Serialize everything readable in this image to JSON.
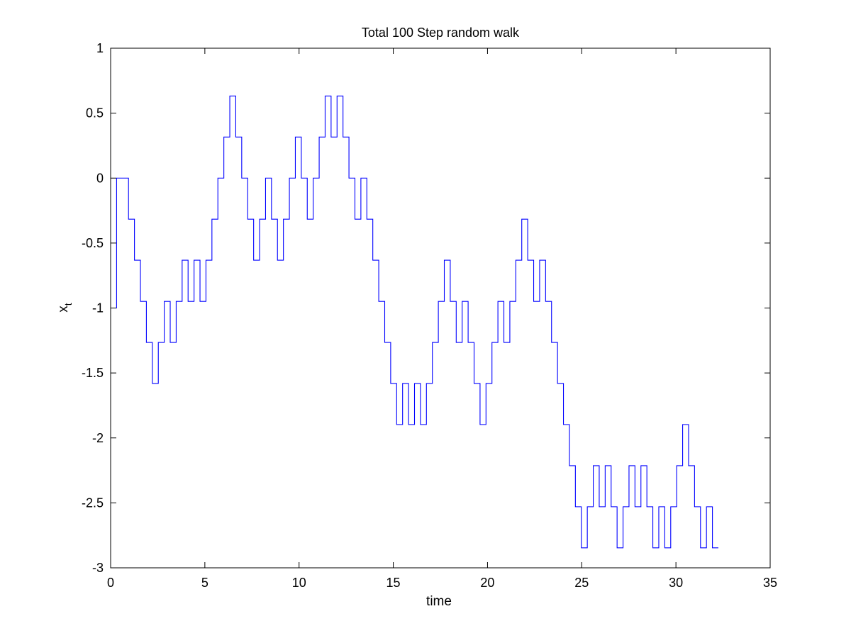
{
  "chart_data": {
    "type": "line",
    "title": "Total 100 Step random walk",
    "xlabel": "time",
    "ylabel": "x",
    "ylabel_subscript": "t",
    "xlim": [
      0,
      35
    ],
    "ylim": [
      -3,
      1
    ],
    "xticks": [
      0,
      5,
      10,
      15,
      20,
      25,
      30,
      35
    ],
    "yticks": [
      -3,
      -2.5,
      -2,
      -1.5,
      -1,
      -0.5,
      0,
      0.5,
      1
    ],
    "xtick_labels": [
      "0",
      "5",
      "10",
      "15",
      "20",
      "25",
      "30",
      "35"
    ],
    "ytick_labels": [
      "-3",
      "-2.5",
      "-2",
      "-1.5",
      "-1",
      "-0.5",
      "0",
      "0.5",
      "1"
    ],
    "grid": false,
    "legend": "none",
    "step_interval": 0.3162,
    "series": [
      {
        "color": "#0000ff",
        "step": true,
        "values": [
          -1.0,
          0.0,
          0.0,
          -0.316,
          -0.632,
          -0.949,
          -1.265,
          -1.581,
          -1.265,
          -0.949,
          -1.265,
          -0.949,
          -0.632,
          -0.949,
          -0.632,
          -0.949,
          -0.632,
          -0.316,
          0.0,
          0.316,
          0.632,
          0.316,
          0.0,
          -0.316,
          -0.632,
          -0.316,
          0.0,
          -0.316,
          -0.632,
          -0.316,
          0.0,
          0.316,
          0.0,
          -0.316,
          0.0,
          0.316,
          0.632,
          0.316,
          0.632,
          0.316,
          0.0,
          -0.316,
          0.0,
          -0.316,
          -0.632,
          -0.949,
          -1.265,
          -1.581,
          -1.897,
          -1.581,
          -1.897,
          -1.581,
          -1.897,
          -1.581,
          -1.265,
          -0.949,
          -0.632,
          -0.949,
          -1.265,
          -0.949,
          -1.265,
          -1.581,
          -1.897,
          -1.581,
          -1.265,
          -0.949,
          -1.265,
          -0.949,
          -0.632,
          -0.316,
          -0.632,
          -0.949,
          -0.632,
          -0.949,
          -1.265,
          -1.581,
          -1.897,
          -2.214,
          -2.53,
          -2.846,
          -2.53,
          -2.214,
          -2.53,
          -2.214,
          -2.53,
          -2.846,
          -2.53,
          -2.214,
          -2.53,
          -2.214,
          -2.53,
          -2.846,
          -2.53,
          -2.846,
          -2.53,
          -2.214,
          -1.897,
          -2.214,
          -2.53,
          -2.846,
          -2.53,
          -2.846
        ]
      }
    ]
  }
}
